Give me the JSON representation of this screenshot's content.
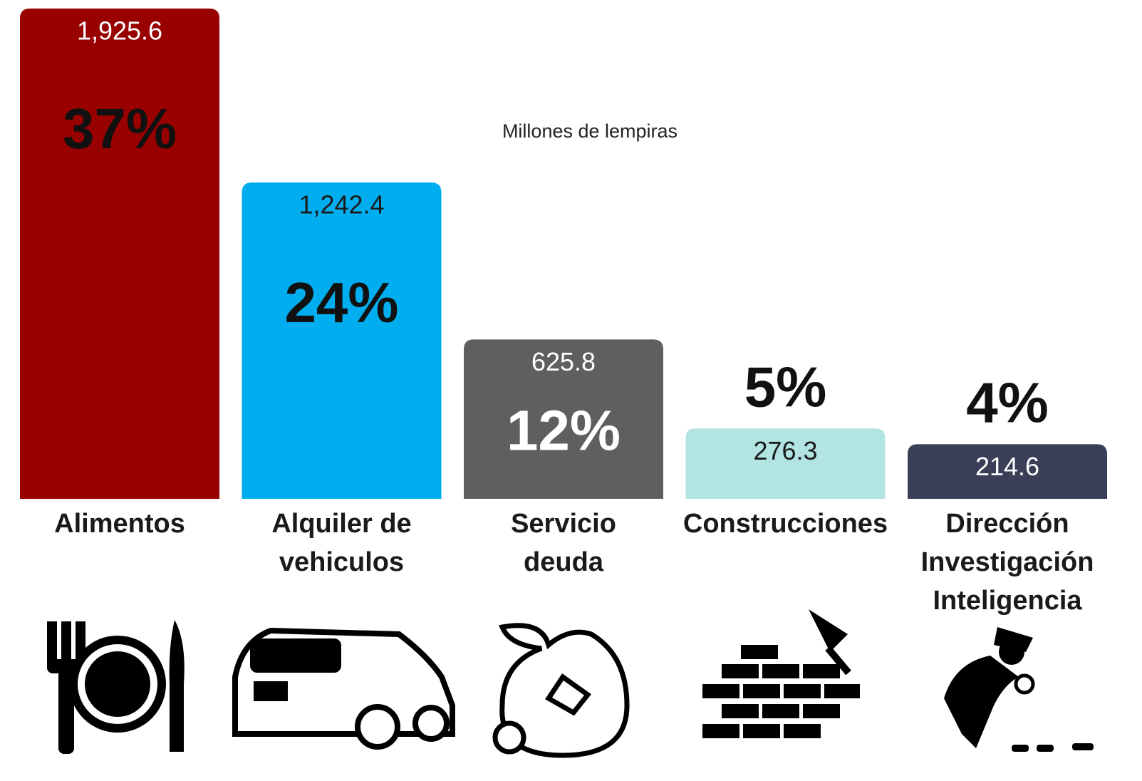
{
  "chart_data": {
    "type": "bar",
    "subtitle": "Millones de lempiras",
    "categories": [
      "Alimentos",
      "Alquiler de vehiculos",
      "Servicio deuda",
      "Construcciones",
      "Dirección Investigación Inteligencia"
    ],
    "values": [
      1925.6,
      1242.4,
      625.8,
      276.3,
      214.6
    ],
    "value_labels": [
      "1,925.6",
      "1,242.4",
      "625.8",
      "276.3",
      "214.6"
    ],
    "shares": [
      37,
      24,
      12,
      5,
      4
    ],
    "share_labels": [
      "37%",
      "24%",
      "12%",
      "5%",
      "4%"
    ],
    "colors": [
      "#990000",
      "#00aeef",
      "#5f5f5f",
      "#b2e4e4",
      "#3a3e57"
    ],
    "value_label_colors": [
      "#ffffff",
      "#1a1a1a",
      "#ffffff",
      "#1a1a1a",
      "#ffffff"
    ],
    "share_label_colors": [
      "#111111",
      "#111111",
      "#ffffff",
      "#111111",
      "#111111"
    ],
    "ylim": [
      0,
      1925.6
    ]
  }
}
